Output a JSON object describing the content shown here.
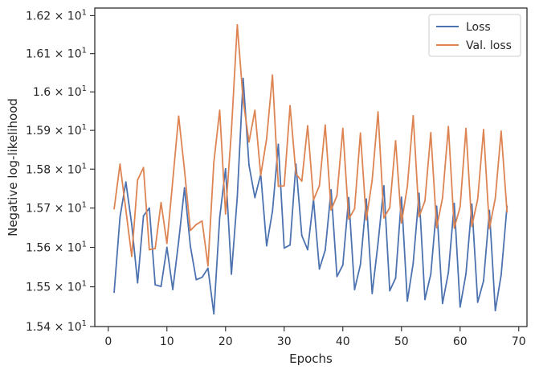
{
  "chart_data": {
    "type": "line",
    "title": "",
    "xlabel": "Epochs",
    "ylabel": "Negative log-likelihood",
    "xlim": [
      -2.3,
      71.4
    ],
    "ylim": [
      15.4,
      16.22
    ],
    "y_scale": "log",
    "grid": false,
    "legend_placement": "top-right",
    "x_ticks": [
      0,
      10,
      20,
      30,
      40,
      50,
      60,
      70
    ],
    "y_ticks": [
      {
        "value": 15.4,
        "mantissa": "1.54",
        "base": "10",
        "exp": "1"
      },
      {
        "value": 15.5,
        "mantissa": "1.55",
        "base": "10",
        "exp": "1"
      },
      {
        "value": 15.6,
        "mantissa": "1.56",
        "base": "10",
        "exp": "1"
      },
      {
        "value": 15.7,
        "mantissa": "1.57",
        "base": "10",
        "exp": "1"
      },
      {
        "value": 15.8,
        "mantissa": "1.58",
        "base": "10",
        "exp": "1"
      },
      {
        "value": 15.9,
        "mantissa": "1.59",
        "base": "10",
        "exp": "1"
      },
      {
        "value": 16.0,
        "mantissa": "1.6",
        "base": "10",
        "exp": "1"
      },
      {
        "value": 16.1,
        "mantissa": "1.61",
        "base": "10",
        "exp": "1"
      },
      {
        "value": 16.2,
        "mantissa": "1.62",
        "base": "10",
        "exp": "1"
      }
    ],
    "x": [
      1,
      2,
      3,
      4,
      5,
      6,
      7,
      8,
      9,
      10,
      11,
      12,
      13,
      14,
      15,
      16,
      17,
      18,
      19,
      20,
      21,
      22,
      23,
      24,
      25,
      26,
      27,
      28,
      29,
      30,
      31,
      32,
      33,
      34,
      35,
      36,
      37,
      38,
      39,
      40,
      41,
      42,
      43,
      44,
      45,
      46,
      47,
      48,
      49,
      50,
      51,
      52,
      53,
      54,
      55,
      56,
      57,
      58,
      59,
      60,
      61,
      62,
      63,
      64,
      65,
      66,
      67,
      68
    ],
    "series": [
      {
        "name": "Loss",
        "color": "#4c72b0",
        "values": [
          15.486,
          15.677,
          15.767,
          15.658,
          15.51,
          15.68,
          15.7,
          15.505,
          15.501,
          15.6,
          15.493,
          15.615,
          15.752,
          15.603,
          15.518,
          15.524,
          15.547,
          15.432,
          15.676,
          15.801,
          15.532,
          15.729,
          16.035,
          15.81,
          15.727,
          15.787,
          15.604,
          15.692,
          15.864,
          15.598,
          15.606,
          15.813,
          15.63,
          15.594,
          15.722,
          15.545,
          15.593,
          15.747,
          15.526,
          15.555,
          15.727,
          15.493,
          15.556,
          15.723,
          15.483,
          15.61,
          15.757,
          15.49,
          15.522,
          15.728,
          15.464,
          15.56,
          15.738,
          15.468,
          15.532,
          15.705,
          15.458,
          15.536,
          15.712,
          15.449,
          15.533,
          15.71,
          15.461,
          15.515,
          15.694,
          15.44,
          15.53,
          15.705
        ]
      },
      {
        "name": "Val. loss",
        "color": "#dd8452",
        "values": [
          15.698,
          15.813,
          15.695,
          15.577,
          15.772,
          15.804,
          15.594,
          15.597,
          15.714,
          15.61,
          15.771,
          15.937,
          15.797,
          15.643,
          15.658,
          15.667,
          15.553,
          15.817,
          15.952,
          15.685,
          15.899,
          16.176,
          15.978,
          15.87,
          15.952,
          15.784,
          15.878,
          16.044,
          15.756,
          15.757,
          15.964,
          15.788,
          15.769,
          15.912,
          15.721,
          15.757,
          15.914,
          15.695,
          15.732,
          15.905,
          15.672,
          15.698,
          15.893,
          15.67,
          15.771,
          15.948,
          15.675,
          15.701,
          15.873,
          15.662,
          15.755,
          15.938,
          15.678,
          15.718,
          15.894,
          15.65,
          15.726,
          15.91,
          15.649,
          15.703,
          15.905,
          15.653,
          15.723,
          15.902,
          15.648,
          15.725,
          15.898,
          15.69
        ]
      }
    ]
  }
}
